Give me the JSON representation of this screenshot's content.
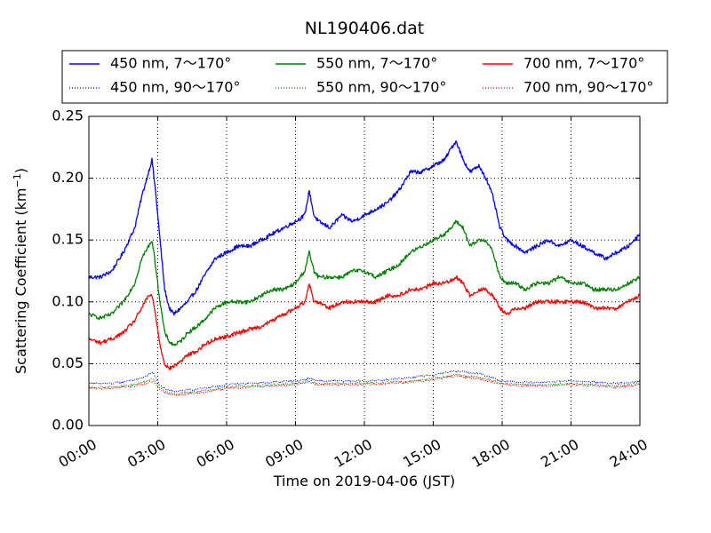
{
  "chart_data": {
    "type": "line",
    "title": "NL190406.dat",
    "xlabel": "Time on 2019-04-06 (JST)",
    "ylabel_main": "Scattering Coefficient (km",
    "ylabel_sup": "−1",
    "ylabel_close": ")",
    "xlim": [
      0,
      24
    ],
    "ylim": [
      0,
      0.25
    ],
    "x_ticks": [
      0,
      3,
      6,
      9,
      12,
      15,
      18,
      21,
      24
    ],
    "x_tick_labels": [
      "00:00",
      "03:00",
      "06:00",
      "09:00",
      "12:00",
      "15:00",
      "18:00",
      "21:00",
      "24:00"
    ],
    "y_ticks": [
      0,
      0.05,
      0.1,
      0.15,
      0.2,
      0.25
    ],
    "y_tick_labels": [
      "0.00",
      "0.05",
      "0.10",
      "0.15",
      "0.20",
      "0.25"
    ],
    "grid": true,
    "legend_position": "top",
    "series": [
      {
        "name": "450 nm, 7～170°",
        "color": "#0000ff",
        "style": "solid",
        "x": [
          0,
          0.5,
          1,
          1.5,
          2,
          2.3,
          2.6,
          2.75,
          2.9,
          3.1,
          3.3,
          3.5,
          3.7,
          4.0,
          4.3,
          4.7,
          5.0,
          5.5,
          6.0,
          6.5,
          7.0,
          7.5,
          8.0,
          8.5,
          9.0,
          9.4,
          9.6,
          9.8,
          10.0,
          10.5,
          11.0,
          11.5,
          12.0,
          12.5,
          13.0,
          13.5,
          14.0,
          14.5,
          15.0,
          15.5,
          15.8,
          16.0,
          16.3,
          16.6,
          17.0,
          17.3,
          17.6,
          17.9,
          18.2,
          18.6,
          19.0,
          19.5,
          20.0,
          20.5,
          21.0,
          21.5,
          22.0,
          22.5,
          23.0,
          23.5,
          24.0
        ],
        "y": [
          0.12,
          0.12,
          0.125,
          0.14,
          0.16,
          0.185,
          0.205,
          0.215,
          0.19,
          0.15,
          0.11,
          0.095,
          0.09,
          0.095,
          0.1,
          0.11,
          0.12,
          0.135,
          0.14,
          0.145,
          0.145,
          0.15,
          0.155,
          0.16,
          0.165,
          0.17,
          0.19,
          0.17,
          0.165,
          0.16,
          0.17,
          0.165,
          0.17,
          0.175,
          0.18,
          0.19,
          0.205,
          0.205,
          0.21,
          0.215,
          0.225,
          0.23,
          0.215,
          0.205,
          0.21,
          0.2,
          0.185,
          0.16,
          0.15,
          0.145,
          0.14,
          0.145,
          0.15,
          0.145,
          0.15,
          0.145,
          0.14,
          0.135,
          0.14,
          0.145,
          0.155
        ]
      },
      {
        "name": "450 nm, 90～170°",
        "color": "#0000ff",
        "style": "dotted",
        "x": [
          0,
          1,
          2,
          2.5,
          2.8,
          3.1,
          3.5,
          4,
          5,
          6,
          7,
          8,
          9,
          9.6,
          10,
          11,
          12,
          13,
          14,
          15,
          16,
          17,
          18,
          19,
          20,
          21,
          22,
          23,
          24
        ],
        "y": [
          0.034,
          0.034,
          0.037,
          0.04,
          0.043,
          0.032,
          0.028,
          0.028,
          0.03,
          0.033,
          0.034,
          0.035,
          0.036,
          0.038,
          0.036,
          0.036,
          0.036,
          0.037,
          0.039,
          0.041,
          0.044,
          0.042,
          0.036,
          0.035,
          0.035,
          0.036,
          0.035,
          0.034,
          0.036
        ]
      },
      {
        "name": "550 nm, 7～170°",
        "color": "#008000",
        "style": "solid",
        "x": [
          0,
          0.5,
          1,
          1.5,
          2,
          2.3,
          2.6,
          2.75,
          2.9,
          3.1,
          3.3,
          3.5,
          3.7,
          4.0,
          4.3,
          4.7,
          5.0,
          5.5,
          6.0,
          6.5,
          7.0,
          7.5,
          8.0,
          8.5,
          9.0,
          9.4,
          9.6,
          9.8,
          10.0,
          10.5,
          11.0,
          11.5,
          12.0,
          12.5,
          13.0,
          13.5,
          14.0,
          14.5,
          15.0,
          15.5,
          15.8,
          16.0,
          16.3,
          16.6,
          17.0,
          17.3,
          17.6,
          17.9,
          18.2,
          18.6,
          19.0,
          19.5,
          20.0,
          20.5,
          21.0,
          21.5,
          22.0,
          22.5,
          23.0,
          23.5,
          24.0
        ],
        "y": [
          0.09,
          0.087,
          0.09,
          0.1,
          0.115,
          0.135,
          0.145,
          0.15,
          0.13,
          0.1,
          0.075,
          0.068,
          0.065,
          0.068,
          0.075,
          0.08,
          0.085,
          0.095,
          0.1,
          0.1,
          0.1,
          0.105,
          0.11,
          0.11,
          0.115,
          0.125,
          0.14,
          0.125,
          0.12,
          0.12,
          0.12,
          0.125,
          0.125,
          0.12,
          0.125,
          0.13,
          0.14,
          0.145,
          0.15,
          0.155,
          0.16,
          0.165,
          0.16,
          0.145,
          0.15,
          0.15,
          0.14,
          0.12,
          0.115,
          0.115,
          0.11,
          0.115,
          0.115,
          0.12,
          0.115,
          0.115,
          0.11,
          0.11,
          0.11,
          0.115,
          0.12
        ]
      },
      {
        "name": "550 nm, 90～170°",
        "color": "#008000",
        "style": "dotted",
        "x": [
          0,
          1,
          2,
          2.5,
          2.8,
          3.1,
          3.5,
          4,
          5,
          6,
          7,
          8,
          9,
          9.6,
          10,
          11,
          12,
          13,
          14,
          15,
          16,
          17,
          18,
          19,
          20,
          21,
          22,
          23,
          24
        ],
        "y": [
          0.031,
          0.031,
          0.033,
          0.036,
          0.038,
          0.03,
          0.026,
          0.026,
          0.028,
          0.031,
          0.032,
          0.033,
          0.034,
          0.036,
          0.034,
          0.034,
          0.034,
          0.035,
          0.036,
          0.038,
          0.041,
          0.039,
          0.034,
          0.033,
          0.033,
          0.034,
          0.033,
          0.032,
          0.034
        ]
      },
      {
        "name": "700 nm, 7～170°",
        "color": "#ff0000",
        "style": "solid",
        "x": [
          0,
          0.5,
          1,
          1.5,
          2,
          2.3,
          2.6,
          2.75,
          2.9,
          3.1,
          3.3,
          3.5,
          3.7,
          4.0,
          4.3,
          4.7,
          5.0,
          5.5,
          6.0,
          6.5,
          7.0,
          7.5,
          8.0,
          8.5,
          9.0,
          9.4,
          9.6,
          9.8,
          10.0,
          10.5,
          11.0,
          11.5,
          12.0,
          12.5,
          13.0,
          13.5,
          14.0,
          14.5,
          15.0,
          15.5,
          15.8,
          16.0,
          16.3,
          16.6,
          17.0,
          17.3,
          17.6,
          17.9,
          18.2,
          18.6,
          19.0,
          19.5,
          20.0,
          20.5,
          21.0,
          21.5,
          22.0,
          22.5,
          23.0,
          23.5,
          24.0
        ],
        "y": [
          0.07,
          0.067,
          0.07,
          0.075,
          0.085,
          0.095,
          0.105,
          0.105,
          0.09,
          0.065,
          0.05,
          0.046,
          0.048,
          0.052,
          0.057,
          0.06,
          0.065,
          0.07,
          0.072,
          0.075,
          0.078,
          0.08,
          0.085,
          0.09,
          0.095,
          0.1,
          0.115,
          0.1,
          0.1,
          0.095,
          0.1,
          0.1,
          0.1,
          0.1,
          0.105,
          0.105,
          0.11,
          0.11,
          0.115,
          0.115,
          0.118,
          0.12,
          0.115,
          0.105,
          0.11,
          0.11,
          0.105,
          0.095,
          0.09,
          0.095,
          0.095,
          0.1,
          0.1,
          0.1,
          0.1,
          0.1,
          0.095,
          0.095,
          0.095,
          0.1,
          0.105
        ]
      },
      {
        "name": "700 nm, 90～170°",
        "color": "#ff0000",
        "style": "dotted",
        "x": [
          0,
          1,
          2,
          2.5,
          2.8,
          3.1,
          3.5,
          4,
          5,
          6,
          7,
          8,
          9,
          9.6,
          10,
          11,
          12,
          13,
          14,
          15,
          16,
          17,
          18,
          19,
          20,
          21,
          22,
          23,
          24
        ],
        "y": [
          0.03,
          0.03,
          0.032,
          0.034,
          0.036,
          0.029,
          0.025,
          0.025,
          0.027,
          0.03,
          0.031,
          0.032,
          0.033,
          0.035,
          0.033,
          0.033,
          0.033,
          0.034,
          0.035,
          0.037,
          0.04,
          0.038,
          0.033,
          0.032,
          0.032,
          0.033,
          0.032,
          0.031,
          0.033
        ]
      }
    ]
  }
}
